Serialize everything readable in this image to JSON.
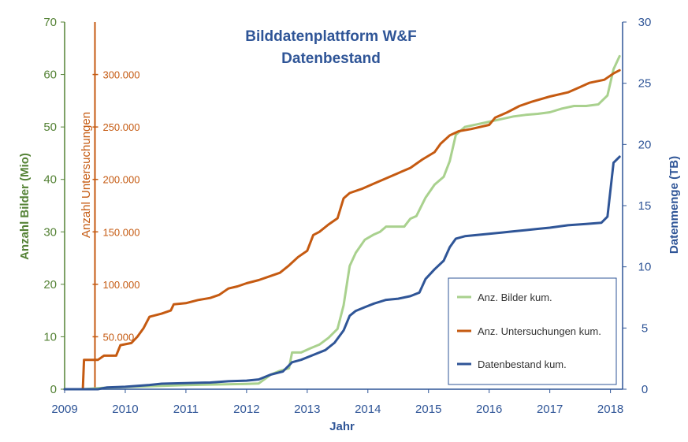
{
  "chart_data": {
    "type": "line",
    "title": [
      "Bilddatenplattform W&F",
      "Datenbestand"
    ],
    "xlabel": "Jahr",
    "ylabel_left": "Anzahl Bilder (Mio)",
    "ylabel_mid": "Anzahl Untersuchungen",
    "ylabel_right": "Datenmenge (TB)",
    "xlim": [
      2009,
      2018.2
    ],
    "ylim_left": [
      0,
      70
    ],
    "ylim_mid": [
      0,
      350000
    ],
    "ylim_right": [
      0,
      30
    ],
    "x_ticks": [
      "2009",
      "2010",
      "2011",
      "2012",
      "2013",
      "2014",
      "2015",
      "2016",
      "2017",
      "2018"
    ],
    "left_ticks": [
      "0",
      "10",
      "20",
      "30",
      "40",
      "50",
      "60",
      "70"
    ],
    "mid_ticks": [
      "50.000",
      "100.000",
      "150.000",
      "200.000",
      "250.000",
      "300.000"
    ],
    "right_ticks": [
      "0",
      "5",
      "10",
      "15",
      "20",
      "25",
      "30"
    ],
    "legend_position": "right-middle",
    "colors": {
      "bilder": "#a9d18e",
      "untersuchungen": "#c55a11",
      "datenbestand": "#2f5597",
      "left_axis": "#548235",
      "title": "#2f5597"
    },
    "series": [
      {
        "name": "Anz. Bilder kum.",
        "axis": "left",
        "x": [
          2009,
          2009.3,
          2009.55,
          2009.7,
          2010.0,
          2010.5,
          2011.0,
          2011.5,
          2012.0,
          2012.2,
          2012.4,
          2012.55,
          2012.7,
          2012.75,
          2012.9,
          2013.05,
          2013.2,
          2013.35,
          2013.5,
          2013.6,
          2013.7,
          2013.8,
          2013.95,
          2014.1,
          2014.2,
          2014.3,
          2014.5,
          2014.6,
          2014.7,
          2014.8,
          2014.95,
          2015.1,
          2015.25,
          2015.35,
          2015.45,
          2015.6,
          2015.8,
          2016.0,
          2016.2,
          2016.4,
          2016.6,
          2016.8,
          2017.0,
          2017.2,
          2017.4,
          2017.6,
          2017.8,
          2017.95,
          2018.05,
          2018.15
        ],
        "values": [
          0,
          0,
          0.2,
          0.3,
          0.4,
          0.6,
          0.8,
          0.9,
          1.0,
          1.1,
          2.8,
          3.5,
          4.0,
          7.0,
          7.0,
          7.8,
          8.5,
          9.8,
          11.5,
          16.0,
          23.5,
          26.0,
          28.5,
          29.5,
          30.0,
          31.0,
          31.0,
          31.0,
          32.5,
          33.0,
          36.5,
          39.0,
          40.5,
          43.5,
          48.5,
          50.0,
          50.5,
          51.0,
          51.5,
          52.0,
          52.3,
          52.5,
          52.8,
          53.5,
          54.0,
          54.0,
          54.3,
          56.0,
          61.0,
          63.5
        ]
      },
      {
        "name": "Anz. Untersuchungen kum.",
        "axis": "mid",
        "x": [
          2009,
          2009.3,
          2009.32,
          2009.55,
          2009.65,
          2009.85,
          2009.92,
          2010.1,
          2010.2,
          2010.3,
          2010.4,
          2010.6,
          2010.75,
          2010.8,
          2011.0,
          2011.2,
          2011.4,
          2011.55,
          2011.7,
          2011.85,
          2012.0,
          2012.2,
          2012.4,
          2012.55,
          2012.7,
          2012.85,
          2013.0,
          2013.1,
          2013.2,
          2013.35,
          2013.5,
          2013.6,
          2013.7,
          2013.9,
          2014.1,
          2014.3,
          2014.5,
          2014.7,
          2014.9,
          2015.1,
          2015.2,
          2015.35,
          2015.5,
          2015.7,
          2016.0,
          2016.1,
          2016.3,
          2016.5,
          2016.7,
          2017.0,
          2017.3,
          2017.5,
          2017.65,
          2017.9,
          2018.05,
          2018.15
        ],
        "values": [
          0,
          0,
          28000,
          28000,
          32000,
          32000,
          42000,
          44000,
          50000,
          58000,
          69000,
          72000,
          75000,
          81000,
          82000,
          85000,
          87000,
          90000,
          96000,
          98000,
          101000,
          104000,
          108000,
          111000,
          118000,
          126000,
          132000,
          147000,
          150000,
          157000,
          163000,
          182000,
          187000,
          191000,
          196000,
          201000,
          206000,
          211000,
          219000,
          226000,
          234000,
          242000,
          246000,
          248000,
          252000,
          259000,
          264000,
          270000,
          274000,
          279000,
          283000,
          288000,
          292000,
          295000,
          301000,
          304000
        ]
      },
      {
        "name": "Datenbestand kum.",
        "axis": "right",
        "x": [
          2009,
          2009.55,
          2009.7,
          2010.0,
          2010.4,
          2010.6,
          2011.0,
          2011.4,
          2011.7,
          2012.0,
          2012.2,
          2012.4,
          2012.6,
          2012.75,
          2012.9,
          2013.1,
          2013.3,
          2013.45,
          2013.6,
          2013.7,
          2013.8,
          2013.95,
          2014.1,
          2014.3,
          2014.5,
          2014.7,
          2014.85,
          2014.95,
          2015.1,
          2015.25,
          2015.35,
          2015.45,
          2015.6,
          2015.8,
          2016.0,
          2016.2,
          2016.4,
          2016.6,
          2016.8,
          2017.0,
          2017.3,
          2017.6,
          2017.85,
          2017.95,
          2018.05,
          2018.15
        ],
        "values": [
          0,
          0,
          0.15,
          0.2,
          0.35,
          0.45,
          0.5,
          0.55,
          0.65,
          0.7,
          0.8,
          1.2,
          1.45,
          2.2,
          2.4,
          2.8,
          3.2,
          3.8,
          4.8,
          6.0,
          6.4,
          6.7,
          7.0,
          7.3,
          7.4,
          7.6,
          7.9,
          9.0,
          9.8,
          10.5,
          11.6,
          12.3,
          12.5,
          12.6,
          12.7,
          12.8,
          12.9,
          13.0,
          13.1,
          13.2,
          13.4,
          13.5,
          13.6,
          14.1,
          18.5,
          19.0
        ]
      }
    ]
  }
}
